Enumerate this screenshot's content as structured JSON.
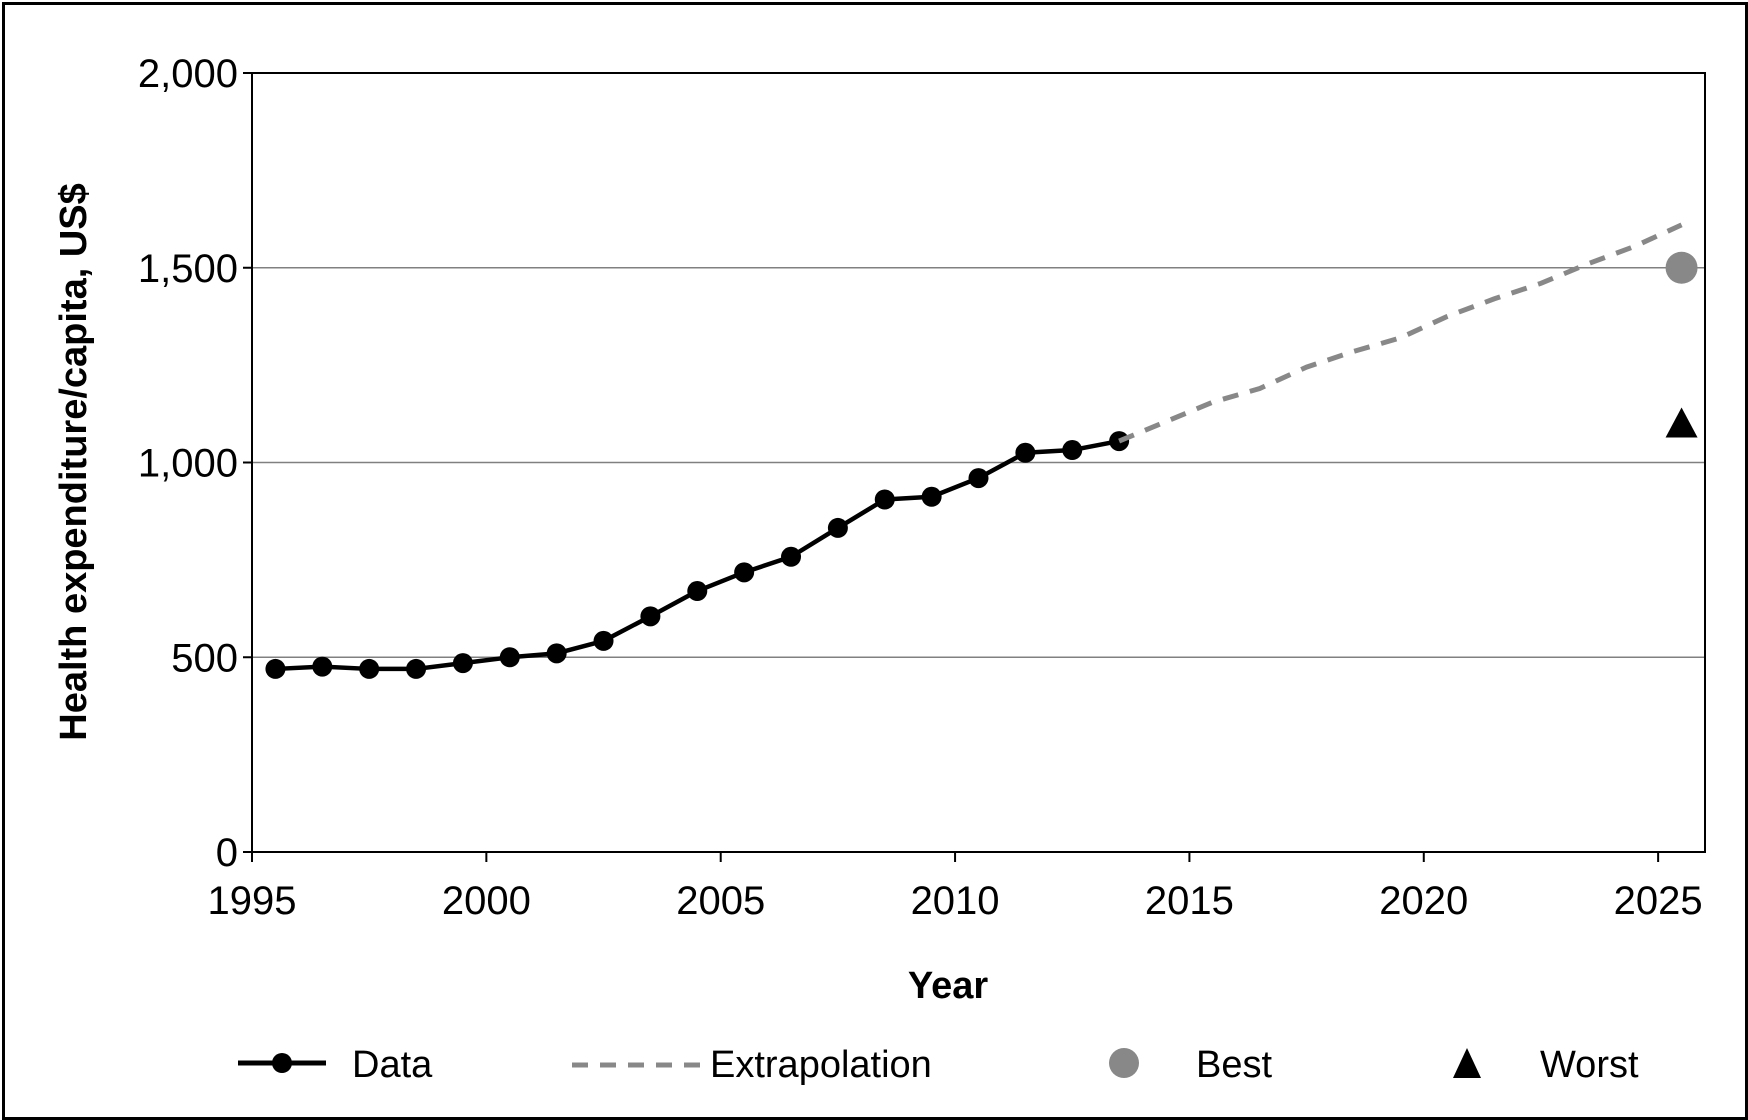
{
  "chart_data": {
    "type": "line",
    "title": "",
    "xlabel": "Year",
    "ylabel": "Health expenditure/capita, US$",
    "xlim": [
      1995,
      2026
    ],
    "ylim": [
      0,
      2000
    ],
    "x_ticks": [
      1995,
      2000,
      2005,
      2010,
      2015,
      2020,
      2025
    ],
    "x_tick_labels": [
      "1995",
      "2000",
      "2005",
      "2010",
      "2015",
      "2020",
      "2025"
    ],
    "y_ticks": [
      0,
      500,
      1000,
      1500,
      2000
    ],
    "y_tick_labels": [
      "0",
      "500",
      "1,000",
      "1,500",
      "2,000"
    ],
    "grid": "horizontal",
    "legend_position": "bottom",
    "series": [
      {
        "name": "Data",
        "style": "solid line with circle markers",
        "color": "#000000",
        "x": [
          1995.5,
          1996.5,
          1997.5,
          1998.5,
          1999.5,
          2000.5,
          2001.5,
          2002.5,
          2003.5,
          2004.5,
          2005.5,
          2006.5,
          2007.5,
          2008.5,
          2009.5,
          2010.5,
          2011.5,
          2012.5,
          2013.5
        ],
        "y": [
          470,
          476,
          470,
          470,
          485,
          500,
          510,
          542,
          605,
          670,
          718,
          758,
          832,
          905,
          912,
          960,
          1025,
          1032,
          1055
        ]
      },
      {
        "name": "Extrapolation",
        "style": "dashed line",
        "color": "#888888",
        "x": [
          2013.5,
          2014.5,
          2015.5,
          2016.5,
          2017.5,
          2018.5,
          2019.5,
          2020.5,
          2021.5,
          2022.5,
          2023.5,
          2024.5,
          2025.5
        ],
        "y": [
          1055,
          1105,
          1155,
          1190,
          1245,
          1285,
          1320,
          1375,
          1420,
          1460,
          1510,
          1555,
          1610
        ]
      },
      {
        "name": "Best",
        "style": "circle marker",
        "color": "#888888",
        "x": [
          2025.5
        ],
        "y": [
          1500
        ]
      },
      {
        "name": "Worst",
        "style": "triangle marker",
        "color": "#000000",
        "x": [
          2025.5
        ],
        "y": [
          1100
        ]
      }
    ]
  },
  "legend": {
    "data_label": "Data",
    "extrapolation_label": "Extrapolation",
    "best_label": "Best",
    "worst_label": "Worst"
  },
  "colors": {
    "data_line": "#000000",
    "extrapolation_line": "#888888",
    "best_marker": "#888888",
    "worst_marker": "#000000",
    "gridline": "#808080"
  }
}
